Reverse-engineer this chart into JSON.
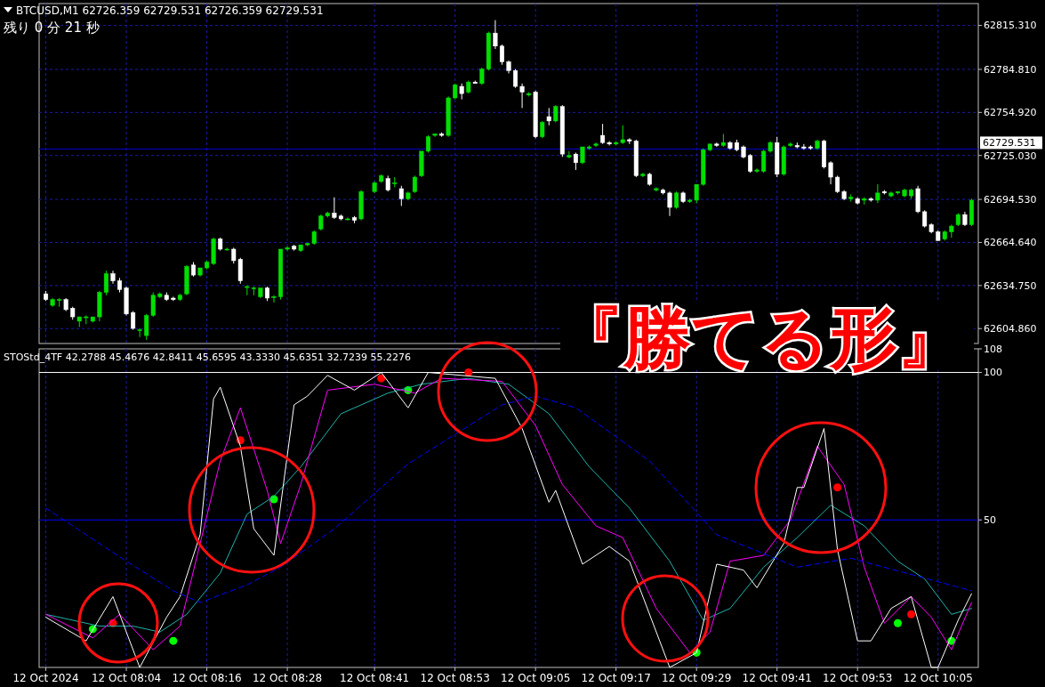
{
  "chart_data": [
    {
      "type": "candlestick",
      "annotations": [
        "BTCUSD,M1  62726.359 62729.531 62726.359 62729.531",
        "残り 0 分 21 秒"
      ],
      "x": [
        "2024-10-12T07:52",
        "2024-10-12T07:53",
        "2024-10-12T07:54",
        "2024-10-12T07:55",
        "2024-10-12T07:56",
        "2024-10-12T07:57",
        "2024-10-12T07:58",
        "2024-10-12T07:59",
        "2024-10-12T08:00",
        "2024-10-12T08:01",
        "2024-10-12T08:02",
        "2024-10-12T08:03",
        "2024-10-12T08:04",
        "2024-10-12T08:05",
        "2024-10-12T08:06",
        "2024-10-12T08:07",
        "2024-10-12T08:08",
        "2024-10-12T08:09",
        "2024-10-12T08:10",
        "2024-10-12T08:11",
        "2024-10-12T08:12",
        "2024-10-12T08:13",
        "2024-10-12T08:14",
        "2024-10-12T08:15",
        "2024-10-12T08:16",
        "2024-10-12T08:17",
        "2024-10-12T08:18",
        "2024-10-12T08:19",
        "2024-10-12T08:20",
        "2024-10-12T08:21",
        "2024-10-12T08:22",
        "2024-10-12T08:23",
        "2024-10-12T08:24",
        "2024-10-12T08:25",
        "2024-10-12T08:26",
        "2024-10-12T08:27",
        "2024-10-12T08:28",
        "2024-10-12T08:29",
        "2024-10-12T08:30",
        "2024-10-12T08:31",
        "2024-10-12T08:32",
        "2024-10-12T08:33",
        "2024-10-12T08:34",
        "2024-10-12T08:35",
        "2024-10-12T08:36",
        "2024-10-12T08:37",
        "2024-10-12T08:38",
        "2024-10-12T08:39",
        "2024-10-12T08:41",
        "2024-10-12T08:42",
        "2024-10-12T08:43",
        "2024-10-12T08:44",
        "2024-10-12T08:45",
        "2024-10-12T08:46",
        "2024-10-12T08:47",
        "2024-10-12T08:48",
        "2024-10-12T08:49",
        "2024-10-12T08:50",
        "2024-10-12T08:51",
        "2024-10-12T08:52",
        "2024-10-12T08:53",
        "2024-10-12T08:54",
        "2024-10-12T08:55",
        "2024-10-12T08:56",
        "2024-10-12T08:57",
        "2024-10-12T08:58",
        "2024-10-12T08:59",
        "2024-10-12T09:00",
        "2024-10-12T09:01",
        "2024-10-12T09:02",
        "2024-10-12T09:03",
        "2024-10-12T09:04",
        "2024-10-12T09:05",
        "2024-10-12T09:06",
        "2024-10-12T09:07",
        "2024-10-12T09:08",
        "2024-10-12T09:09",
        "2024-10-12T09:10",
        "2024-10-12T09:11",
        "2024-10-12T09:12",
        "2024-10-12T09:13",
        "2024-10-12T09:14",
        "2024-10-12T09:15",
        "2024-10-12T09:16",
        "2024-10-12T09:17",
        "2024-10-12T09:18",
        "2024-10-12T09:19",
        "2024-10-12T09:20",
        "2024-10-12T09:21",
        "2024-10-12T09:22",
        "2024-10-12T09:23",
        "2024-10-12T09:24",
        "2024-10-12T09:25",
        "2024-10-12T09:26",
        "2024-10-12T09:27",
        "2024-10-12T09:28",
        "2024-10-12T09:29",
        "2024-10-12T09:30",
        "2024-10-12T09:31",
        "2024-10-12T09:32",
        "2024-10-12T09:33",
        "2024-10-12T09:34",
        "2024-10-12T09:35",
        "2024-10-12T09:36",
        "2024-10-12T09:37",
        "2024-10-12T09:38",
        "2024-10-12T09:39",
        "2024-10-12T09:40",
        "2024-10-12T09:41",
        "2024-10-12T09:42",
        "2024-10-12T09:43",
        "2024-10-12T09:44",
        "2024-10-12T09:45",
        "2024-10-12T09:46",
        "2024-10-12T09:47",
        "2024-10-12T09:48",
        "2024-10-12T09:49",
        "2024-10-12T09:50",
        "2024-10-12T09:51",
        "2024-10-12T09:52",
        "2024-10-12T09:53",
        "2024-10-12T09:54",
        "2024-10-12T09:55",
        "2024-10-12T09:56",
        "2024-10-12T09:57",
        "2024-10-12T09:58",
        "2024-10-12T09:59",
        "2024-10-12T10:00",
        "2024-10-12T10:01",
        "2024-10-12T10:02",
        "2024-10-12T10:03",
        "2024-10-12T10:04",
        "2024-10-12T10:05",
        "2024-10-12T10:06",
        "2024-10-12T10:07",
        "2024-10-12T10:08",
        "2024-10-12T10:09",
        "2024-10-12T10:10"
      ],
      "ohlc": [
        [
          62629,
          62631,
          62624,
          62625
        ],
        [
          62621,
          62626,
          62620,
          62625
        ],
        [
          62625,
          62626,
          62620,
          62625
        ],
        [
          62625,
          62626,
          62617,
          62618
        ],
        [
          62619,
          62620,
          62611,
          62613
        ],
        [
          62610,
          62613,
          62606,
          62613
        ],
        [
          62613,
          62614,
          62608,
          62613
        ],
        [
          62610,
          62613,
          62609,
          62613
        ],
        [
          62613,
          62631,
          62610,
          62630
        ],
        [
          62630,
          62645,
          62628,
          62643
        ],
        [
          62643,
          62645,
          62636,
          62638
        ],
        [
          62638,
          62640,
          62630,
          62632
        ],
        [
          62633,
          62634,
          62614,
          62615
        ],
        [
          62616,
          62617,
          62604,
          62605
        ],
        [
          62604,
          62605,
          62599,
          62604
        ],
        [
          62600,
          62615,
          62597,
          62614
        ],
        [
          62614,
          62630,
          62613,
          62628
        ],
        [
          62627,
          62630,
          62626,
          62629
        ],
        [
          62628,
          62630,
          62624,
          62625
        ],
        [
          62626,
          62627,
          62624,
          62625
        ],
        [
          62625,
          62629,
          62624,
          62628
        ],
        [
          62629,
          62649,
          62628,
          62648
        ],
        [
          62649,
          62651,
          62641,
          62642
        ],
        [
          62642,
          62647,
          62641,
          62647
        ],
        [
          62647,
          62652,
          62646,
          62651
        ],
        [
          62650,
          62668,
          62649,
          62667
        ],
        [
          62667,
          62668,
          62659,
          62660
        ],
        [
          62660,
          62661,
          62659,
          62660
        ],
        [
          62660,
          62661,
          62650,
          62652
        ],
        [
          62653,
          62654,
          62636,
          62638
        ],
        [
          62634,
          62635,
          62628,
          62634
        ],
        [
          62633,
          62634,
          62628,
          62633
        ],
        [
          62627,
          62633,
          62626,
          62633
        ],
        [
          62633,
          62634,
          62624,
          62626
        ],
        [
          62627,
          62628,
          62623,
          62627
        ],
        [
          62627,
          62660,
          62625,
          62660
        ],
        [
          62660,
          62662,
          62659,
          62661
        ],
        [
          62662,
          62663,
          62659,
          62660
        ],
        [
          62659,
          62663,
          62658,
          62663
        ],
        [
          62663,
          62664,
          62662,
          62664
        ],
        [
          62664,
          62673,
          62663,
          62672
        ],
        [
          62674,
          62684,
          62673,
          62683
        ],
        [
          62683,
          62686,
          62682,
          62685
        ],
        [
          62685,
          62696,
          62681,
          62682
        ],
        [
          62683,
          62684,
          62680,
          62681
        ],
        [
          62681,
          62682,
          62680,
          62681
        ],
        [
          62682,
          62683,
          62678,
          62680
        ],
        [
          62681,
          62701,
          62680,
          62700
        ],
        [
          62700,
          62707,
          62699,
          62706
        ],
        [
          62707,
          62712,
          62706,
          62711
        ],
        [
          62709,
          62711,
          62700,
          62701
        ],
        [
          62706,
          62710,
          62703,
          62706
        ],
        [
          62702,
          62704,
          62690,
          62695
        ],
        [
          62695,
          62700,
          62694,
          62699
        ],
        [
          62700,
          62711,
          62699,
          62710
        ],
        [
          62711,
          62728,
          62710,
          62728
        ],
        [
          62728,
          62739,
          62727,
          62738
        ],
        [
          62739,
          62740,
          62738,
          62740
        ],
        [
          62740,
          62741,
          62738,
          62739
        ],
        [
          62739,
          62766,
          62738,
          62765
        ],
        [
          62765,
          62775,
          62764,
          62774
        ],
        [
          62773,
          62775,
          62764,
          62768
        ],
        [
          62769,
          62777,
          62768,
          62776
        ],
        [
          62776,
          62777,
          62775,
          62775
        ],
        [
          62775,
          62786,
          62774,
          62785
        ],
        [
          62785,
          62811,
          62784,
          62810
        ],
        [
          62810,
          62819,
          62799,
          62801
        ],
        [
          62801,
          62802,
          62788,
          62790
        ],
        [
          62790,
          62791,
          62782,
          62784
        ],
        [
          62784,
          62785,
          62772,
          62773
        ],
        [
          62773,
          62775,
          62758,
          62769
        ],
        [
          62767,
          62769,
          62766,
          62768
        ],
        [
          62769,
          62770,
          62737,
          62738
        ],
        [
          62738,
          62749,
          62737,
          62748
        ],
        [
          62752,
          62758,
          62746,
          62749
        ],
        [
          62749,
          62760,
          62748,
          62759
        ],
        [
          62759,
          62760,
          62724,
          62726
        ],
        [
          62724,
          62728,
          62723,
          62725
        ],
        [
          62726,
          62727,
          62715,
          62720
        ],
        [
          62720,
          62731,
          62719,
          62731
        ],
        [
          62730,
          62732,
          62729,
          62731
        ],
        [
          62732,
          62734,
          62731,
          62733
        ],
        [
          62739,
          62747,
          62733,
          62734
        ],
        [
          62734,
          62735,
          62732,
          62733
        ],
        [
          62733,
          62735,
          62732,
          62734
        ],
        [
          62734,
          62746,
          62733,
          62736
        ],
        [
          62736,
          62737,
          62733,
          62735
        ],
        [
          62735,
          62736,
          62710,
          62711
        ],
        [
          62711,
          62713,
          62710,
          62712
        ],
        [
          62712,
          62713,
          62704,
          62705
        ],
        [
          62701,
          62703,
          62700,
          62702
        ],
        [
          62701,
          62702,
          62698,
          62699
        ],
        [
          62699,
          62700,
          62683,
          62689
        ],
        [
          62689,
          62700,
          62688,
          62699
        ],
        [
          62699,
          62700,
          62692,
          62693
        ],
        [
          62693,
          62695,
          62692,
          62694
        ],
        [
          62694,
          62705,
          62692,
          62705
        ],
        [
          62705,
          62730,
          62704,
          62729
        ],
        [
          62729,
          62733,
          62728,
          62733
        ],
        [
          62733,
          62734,
          62731,
          62732
        ],
        [
          62732,
          62740,
          62731,
          62734
        ],
        [
          62734,
          62735,
          62729,
          62730
        ],
        [
          62734,
          62736,
          62728,
          62729
        ],
        [
          62731,
          62732,
          62723,
          62724
        ],
        [
          62725,
          62726,
          62713,
          62714
        ],
        [
          62714,
          62716,
          62713,
          62715
        ],
        [
          62714,
          62729,
          62713,
          62728
        ],
        [
          62728,
          62735,
          62727,
          62734
        ],
        [
          62734,
          62738,
          62710,
          62712
        ],
        [
          62712,
          62732,
          62711,
          62731
        ],
        [
          62732,
          62734,
          62731,
          62733
        ],
        [
          62732,
          62734,
          62730,
          62731
        ],
        [
          62731,
          62733,
          62729,
          62730
        ],
        [
          62731,
          62732,
          62729,
          62730
        ],
        [
          62730,
          62736,
          62729,
          62735
        ],
        [
          62735,
          62736,
          62716,
          62717
        ],
        [
          62720,
          62721,
          62705,
          62710
        ],
        [
          62710,
          62711,
          62699,
          62700
        ],
        [
          62700,
          62701,
          62694,
          62695
        ],
        [
          62695,
          62698,
          62693,
          62696
        ],
        [
          62695,
          62696,
          62691,
          62692
        ],
        [
          62694,
          62696,
          62691,
          62695
        ],
        [
          62695,
          62696,
          62693,
          62694
        ],
        [
          62694,
          62705,
          62692,
          62699
        ],
        [
          62700,
          62701,
          62698,
          62699
        ],
        [
          62697,
          62700,
          62696,
          62699
        ],
        [
          62699,
          62700,
          62698,
          62700
        ],
        [
          62697,
          62702,
          62696,
          62701
        ],
        [
          62697,
          62702,
          62695,
          62701
        ],
        [
          62702,
          62704,
          62685,
          62686
        ],
        [
          62686,
          62687,
          62675,
          62676
        ],
        [
          62677,
          62678,
          62671,
          62672
        ],
        [
          62672,
          62673,
          62666,
          62666
        ],
        [
          62667,
          62673,
          62666,
          62672
        ],
        [
          62672,
          62677,
          62668,
          62676
        ],
        [
          62677,
          62685,
          62676,
          62684
        ],
        [
          62684,
          62686,
          62676,
          62677
        ],
        [
          62677,
          62695,
          62676,
          62694
        ]
      ],
      "xlim": [
        "2024-10-12T07:51",
        "2024-10-12T10:11"
      ],
      "xticks": [
        "2024-10-12T07:52",
        "2024-10-12T08:04",
        "2024-10-12T08:16",
        "2024-10-12T08:28",
        "2024-10-12T08:41",
        "2024-10-12T08:53",
        "2024-10-12T09:05",
        "2024-10-12T09:17",
        "2024-10-12T09:29",
        "2024-10-12T09:41",
        "2024-10-12T09:53",
        "2024-10-12T10:05"
      ],
      "ylim": [
        62594.5,
        62830.5
      ],
      "yticks": [
        {
          "value": 62604.86,
          "label": "62604.860"
        },
        {
          "value": 62634.75,
          "label": "62634.750"
        },
        {
          "value": 62664.64,
          "label": "62664.640"
        },
        {
          "value": 62694.53,
          "label": "62694.530"
        },
        {
          "value": 62725.03,
          "label": "62725.030"
        },
        {
          "value": 62754.92,
          "label": "62754.920"
        },
        {
          "value": 62784.81,
          "label": "62784.810"
        },
        {
          "value": 62815.31,
          "label": "62815.310"
        }
      ],
      "ref_lines": [
        {
          "axis": "y",
          "value": 62729.531,
          "label": "62729.531",
          "color": "#0000cc"
        }
      ],
      "grid": true,
      "tick_labels": "y"
    },
    {
      "type": "line",
      "annotations": [
        "STOStd_4TF 42.2788 45.4676 42.8411 45.6595 43.3330 45.6351 32.7239 55.2276",
        "『勝てる形』"
      ],
      "series": [
        {
          "color": "#20b2aa",
          "x": [
            "2024-10-12T07:52",
            "2024-10-12T08:00",
            "2024-10-12T08:05",
            "2024-10-12T08:09",
            "2024-10-12T08:13",
            "2024-10-12T08:18",
            "2024-10-12T08:22",
            "2024-10-12T08:26",
            "2024-10-12T08:30",
            "2024-10-12T08:36",
            "2024-10-12T08:43",
            "2024-10-12T08:48",
            "2024-10-12T08:55",
            "2024-10-12T09:01",
            "2024-10-12T09:07",
            "2024-10-12T09:13",
            "2024-10-12T09:19",
            "2024-10-12T09:25",
            "2024-10-12T09:30",
            "2024-10-12T09:34",
            "2024-10-12T09:39",
            "2024-10-12T09:44",
            "2024-10-12T09:49",
            "2024-10-12T09:54",
            "2024-10-12T09:59",
            "2024-10-12T10:03",
            "2024-10-12T10:07",
            "2024-10-12T10:10"
          ],
          "values": [
            18,
            14,
            14,
            12,
            18,
            32,
            52,
            58,
            68,
            86,
            93,
            96,
            98,
            96,
            86,
            68,
            54,
            36,
            16,
            20,
            34,
            44,
            55,
            48,
            36,
            30,
            18,
            20
          ]
        },
        {
          "color": "#ff00ff",
          "x": [
            "2024-10-12T07:52",
            "2024-10-12T07:59",
            "2024-10-12T08:03",
            "2024-10-12T08:08",
            "2024-10-12T08:12",
            "2024-10-12T08:18",
            "2024-10-12T08:21",
            "2024-10-12T08:25",
            "2024-10-12T08:27",
            "2024-10-12T08:30",
            "2024-10-12T08:34",
            "2024-10-12T08:41",
            "2024-10-12T08:47",
            "2024-10-12T08:51",
            "2024-10-12T09:00",
            "2024-10-12T09:05",
            "2024-10-12T09:09",
            "2024-10-12T09:14",
            "2024-10-12T09:18",
            "2024-10-12T09:23",
            "2024-10-12T09:28",
            "2024-10-12T09:31",
            "2024-10-12T09:34",
            "2024-10-12T09:39",
            "2024-10-12T09:43",
            "2024-10-12T09:47",
            "2024-10-12T09:51",
            "2024-10-12T09:54",
            "2024-10-12T09:57",
            "2024-10-12T10:01",
            "2024-10-12T10:04",
            "2024-10-12T10:07",
            "2024-10-12T10:10"
          ],
          "values": [
            18,
            10,
            18,
            6,
            14,
            70,
            88,
            60,
            42,
            62,
            94,
            96,
            93,
            98,
            97,
            82,
            62,
            48,
            44,
            20,
            5,
            12,
            36,
            38,
            50,
            75,
            62,
            34,
            15,
            24,
            17,
            6,
            22
          ]
        },
        {
          "color": "#ffffff",
          "x": [
            "2024-10-12T07:52",
            "2024-10-12T07:58",
            "2024-10-12T08:02",
            "2024-10-12T08:06",
            "2024-10-12T08:10",
            "2024-10-12T08:12",
            "2024-10-12T08:15",
            "2024-10-12T08:17",
            "2024-10-12T08:18",
            "2024-10-12T08:21",
            "2024-10-12T08:23",
            "2024-10-12T08:26",
            "2024-10-12T08:29",
            "2024-10-12T08:31",
            "2024-10-12T08:34",
            "2024-10-12T08:38",
            "2024-10-12T08:42",
            "2024-10-12T08:46",
            "2024-10-12T08:49",
            "2024-10-12T08:59",
            "2024-10-12T09:03",
            "2024-10-12T09:07",
            "2024-10-12T09:08",
            "2024-10-12T09:12",
            "2024-10-12T09:16",
            "2024-10-12T09:19",
            "2024-10-12T09:25",
            "2024-10-12T09:29",
            "2024-10-12T09:32",
            "2024-10-12T09:36",
            "2024-10-12T09:38",
            "2024-10-12T09:42",
            "2024-10-12T09:44",
            "2024-10-12T09:45",
            "2024-10-12T09:48",
            "2024-10-12T09:50",
            "2024-10-12T09:53",
            "2024-10-12T09:55",
            "2024-10-12T09:58",
            "2024-10-12T10:01",
            "2024-10-12T10:04",
            "2024-10-12T10:05",
            "2024-10-12T10:08",
            "2024-10-12T10:10"
          ],
          "values": [
            17,
            9,
            24,
            0,
            17,
            24,
            45,
            91,
            95,
            75,
            47,
            38,
            89,
            92,
            99,
            94,
            100,
            88,
            100,
            98,
            81,
            56,
            60,
            35,
            41,
            36,
            0,
            5,
            35,
            33,
            27,
            42,
            61,
            61,
            81,
            40,
            9,
            9,
            20,
            24,
            0,
            0,
            16,
            25
          ]
        },
        {
          "color": "#0000ff",
          "line_style": "dashed",
          "x": [
            "2024-10-12T07:52",
            "2024-10-12T08:04",
            "2024-10-12T08:11",
            "2024-10-12T08:15",
            "2024-10-12T08:22",
            "2024-10-12T08:27",
            "2024-10-12T08:35",
            "2024-10-12T08:46",
            "2024-10-12T09:00",
            "2024-10-12T09:05",
            "2024-10-12T09:11",
            "2024-10-12T09:22",
            "2024-10-12T09:32",
            "2024-10-12T09:44",
            "2024-10-12T09:52",
            "2024-10-12T10:10"
          ],
          "values": [
            54,
            36,
            26,
            22,
            28,
            34,
            47,
            69,
            89,
            92,
            88,
            70,
            45,
            34,
            37,
            26
          ]
        },
        {
          "type": "scatter",
          "marker": "circle",
          "color": "#00ff00",
          "x": [
            "2024-10-12T07:59",
            "2024-10-12T08:11",
            "2024-10-12T08:26",
            "2024-10-12T08:46",
            "2024-10-12T09:29",
            "2024-10-12T09:59",
            "2024-10-12T10:07"
          ],
          "values": [
            13,
            9,
            57,
            94,
            5,
            15,
            9
          ]
        },
        {
          "type": "scatter",
          "marker": "circle",
          "color": "#ff0000",
          "x": [
            "2024-10-12T08:02",
            "2024-10-12T08:21",
            "2024-10-12T08:42",
            "2024-10-12T08:55",
            "2024-10-12T09:50",
            "2024-10-12T10:01"
          ],
          "values": [
            15,
            77,
            98,
            100,
            61,
            18
          ]
        }
      ],
      "xlim": [
        "2024-10-12T07:51",
        "2024-10-12T10:11"
      ],
      "xticks": [
        {
          "value": "2024-10-12T07:52",
          "label": "12 Oct 2024"
        },
        {
          "value": "2024-10-12T08:04",
          "label": "12 Oct 08:04"
        },
        {
          "value": "2024-10-12T08:16",
          "label": "12 Oct 08:16"
        },
        {
          "value": "2024-10-12T08:28",
          "label": "12 Oct 08:28"
        },
        {
          "value": "2024-10-12T08:41",
          "label": "12 Oct 08:41"
        },
        {
          "value": "2024-10-12T08:53",
          "label": "12 Oct 08:53"
        },
        {
          "value": "2024-10-12T09:05",
          "label": "12 Oct 09:05"
        },
        {
          "value": "2024-10-12T09:17",
          "label": "12 Oct 09:17"
        },
        {
          "value": "2024-10-12T09:29",
          "label": "12 Oct 09:29"
        },
        {
          "value": "2024-10-12T09:41",
          "label": "12 Oct 09:41"
        },
        {
          "value": "2024-10-12T09:53",
          "label": "12 Oct 09:53"
        },
        {
          "value": "2024-10-12T10:05",
          "label": "12 Oct 10:05"
        }
      ],
      "ylim": [
        0,
        108
      ],
      "yticks": [
        50,
        100,
        108
      ],
      "ref_lines": [
        {
          "axis": "y",
          "value": 50,
          "color": "#0000ff"
        },
        {
          "axis": "y",
          "value": 100,
          "color": "#ffffff"
        }
      ],
      "grid": "x"
    }
  ]
}
